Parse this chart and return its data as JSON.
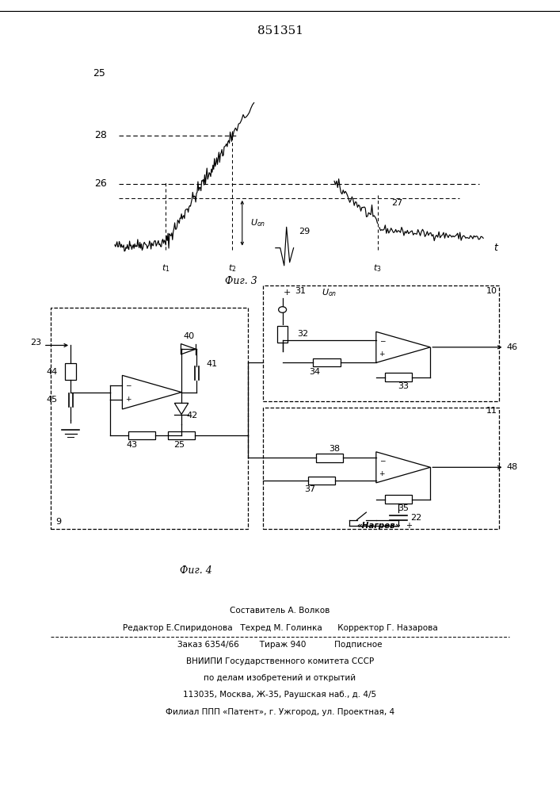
{
  "patent_number": "851351",
  "fig3_caption": "Фиг. 3",
  "fig4_caption": "Фиг. 4",
  "footer_line1": "Составитель А. Волков",
  "footer_line2": "Редактор Е.Спиридонова   Техред М. Голинка      Корректор Г. Назарова",
  "footer_line3": "Заказ 6354/66        Тираж 940           Подписное",
  "footer_line4": "ВНИИПИ Государственного комитета СССР",
  "footer_line5": "по делам изобретений и открытий",
  "footer_line6": "113035, Москва, Ж-35, Раушская наб., д. 4/5",
  "footer_line7": "Филиал ППП «Патент», г. Ужгород, ул. Проектная, 4",
  "bg_color": "#ffffff"
}
